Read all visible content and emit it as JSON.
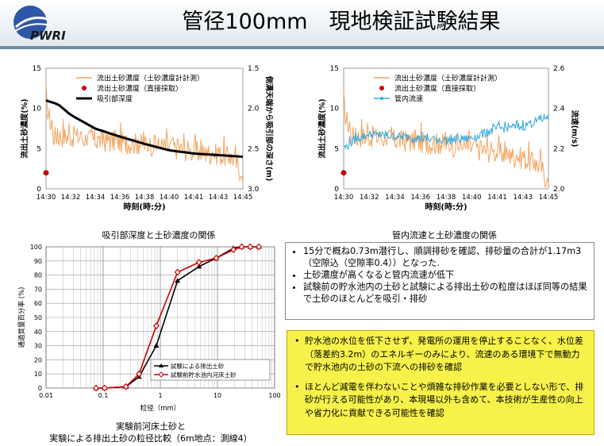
{
  "title": "管径100mm　現地検証試験結果",
  "logo": {
    "text": "PWRI",
    "circle_color": "#2f57a7"
  },
  "chart1": {
    "caption": "吸引部深度と土砂濃度の関係",
    "xlabel": "時刻(時:分)",
    "ylabel_left": "流出土砂濃度(%)",
    "ylabel_right": "側溝天端から吸引部の深さ(m)",
    "legend": [
      "流出土砂濃度（土砂濃度計計測）",
      "流出土砂濃度（直接採取）",
      "吸引部深度"
    ]
  },
  "chart2": {
    "caption": "管内流速と土砂濃度の関係",
    "xlabel": "時刻(時:分)",
    "ylabel_left": "流出土砂濃度(%)",
    "ylabel_right": "流速(m/s)",
    "legend": [
      "流出土砂濃度（土砂濃度計計測）",
      "流出土砂濃度（直接採取）",
      "管内流速"
    ]
  },
  "chart3": {
    "caption_line1": "実験前河床土砂と",
    "caption_line2": "実験による排出土砂の粒径比較（6m地点：測線4）",
    "xlabel": "粒径（mm）",
    "ylabel": "通過質量百分率 (%)",
    "legend": [
      "試験による排出土砂",
      "試験前貯水池内河床土砂"
    ]
  },
  "chart_data": [
    {
      "type": "line",
      "title": "",
      "x": [
        "14:30",
        "14:32",
        "14:34",
        "14:36",
        "14:38",
        "14:40",
        "14:41",
        "14:43",
        "14:45"
      ],
      "ylim": [
        0,
        15
      ],
      "y2lim": [
        3.0,
        1.5
      ],
      "yticks": [
        0,
        5,
        10,
        15
      ],
      "y2ticks": [
        "3.0",
        "2.5",
        "2.0",
        "1.5"
      ],
      "series": [
        {
          "name": "流出土砂濃度（土砂濃度計計測）",
          "axis": "left",
          "color": "#f4a460",
          "anchors": [
            [
              0,
              10.8
            ],
            [
              0.3,
              6.5
            ],
            [
              1,
              6.5
            ],
            [
              2,
              6.0
            ],
            [
              3,
              5.8
            ],
            [
              4,
              5.5
            ],
            [
              5,
              5.2
            ],
            [
              6,
              4.6
            ],
            [
              7,
              4.3
            ],
            [
              7.6,
              3.8
            ],
            [
              7.9,
              2.2
            ],
            [
              8,
              0.5
            ]
          ]
        },
        {
          "name": "流出土砂濃度（直接採取）",
          "axis": "left",
          "color": "#cc0000",
          "points": [
            [
              0,
              2.0
            ]
          ]
        },
        {
          "name": "吸引部深度",
          "axis": "right",
          "color": "#000000",
          "anchors": [
            [
              0,
              1.9
            ],
            [
              0.5,
              1.95
            ],
            [
              1,
              2.08
            ],
            [
              2,
              2.25
            ],
            [
              3,
              2.35
            ],
            [
              4,
              2.44
            ],
            [
              5,
              2.52
            ],
            [
              6,
              2.56
            ],
            [
              7,
              2.58
            ],
            [
              8,
              2.6
            ]
          ]
        }
      ]
    },
    {
      "type": "line",
      "title": "",
      "x": [
        "14:30",
        "14:32",
        "14:34",
        "14:36",
        "14:38",
        "14:40",
        "14:41",
        "14:43",
        "14:45"
      ],
      "ylim": [
        0,
        15
      ],
      "y2lim": [
        2.0,
        2.6
      ],
      "yticks": [
        0,
        5,
        10,
        15
      ],
      "y2ticks": [
        "2.0",
        "2.2",
        "2.4",
        "2.6"
      ],
      "series": [
        {
          "name": "流出土砂濃度（土砂濃度計計測）",
          "axis": "left",
          "color": "#f4a460",
          "anchors": [
            [
              0,
              10.0
            ],
            [
              0.3,
              6.5
            ],
            [
              1,
              6.5
            ],
            [
              2,
              6.0
            ],
            [
              3,
              5.8
            ],
            [
              4,
              5.5
            ],
            [
              5,
              5.0
            ],
            [
              6,
              4.5
            ],
            [
              7,
              3.8
            ],
            [
              7.7,
              2.8
            ],
            [
              8,
              0.5
            ]
          ]
        },
        {
          "name": "流出土砂濃度（直接採取）",
          "axis": "left",
          "color": "#cc0000",
          "points": [
            [
              0,
              2.0
            ]
          ]
        },
        {
          "name": "管内流速",
          "axis": "right",
          "color": "#33aadd",
          "anchors": [
            [
              0,
              2.2
            ],
            [
              0.5,
              2.25
            ],
            [
              1,
              2.27
            ],
            [
              2,
              2.26
            ],
            [
              3,
              2.25
            ],
            [
              4,
              2.24
            ],
            [
              5,
              2.25
            ],
            [
              6,
              2.3
            ],
            [
              7,
              2.31
            ],
            [
              8,
              2.36
            ]
          ]
        }
      ]
    },
    {
      "type": "line",
      "title": "",
      "xscale": "log",
      "xlim": [
        0.01,
        100
      ],
      "ylim": [
        0,
        100
      ],
      "xticks": [
        "0.01",
        "0.1",
        "1",
        "10",
        "100"
      ],
      "yticks": [
        0,
        10,
        20,
        30,
        40,
        50,
        60,
        70,
        80,
        90,
        100
      ],
      "series": [
        {
          "name": "試験による排出土砂",
          "color": "#000000",
          "marker": "triangle",
          "x": [
            0.075,
            0.106,
            0.25,
            0.425,
            0.85,
            2.0,
            4.75,
            9.5,
            19,
            26.5,
            37.5,
            53
          ],
          "y": [
            0,
            0,
            1,
            8,
            30,
            76,
            86,
            92,
            99,
            100,
            100,
            100
          ]
        },
        {
          "name": "試験前貯水池内河床土砂",
          "color": "#cc0000",
          "marker": "diamond",
          "x": [
            0.075,
            0.106,
            0.25,
            0.425,
            0.85,
            2.0,
            4.75,
            9.5,
            19,
            26.5,
            37.5,
            53
          ],
          "y": [
            0,
            0,
            1,
            10,
            44,
            82,
            89,
            92,
            98,
            100,
            100,
            100
          ]
        }
      ]
    }
  ],
  "bullets": [
    "15分で概ね0.73m潜行し、順調排砂を確認、排砂量の合計が1.17m3（空隙込（空隙率0.4））となった.",
    "土砂濃度が高くなると管内流速が低下",
    "試験前の貯水池内の土砂と試験による排出土砂の粒度はほぼ同等の結果で土砂のほとんどを吸引・排砂"
  ],
  "highlights": [
    "貯水池の水位を低下させず、発電所の運用を停止することなく、水位差（落差約3.2m）のエネルギーのみにより、流速のある環境下で無動力で貯水池内の土砂の下流への排砂を確認",
    "ほとんど減電を伴わないことや煩雑な排砂作業を必要としない形で、排砂が行える可能性があり、本現場以外も含めて、本技術が生産性の向上や省力化に貢献できる可能性を確認"
  ]
}
